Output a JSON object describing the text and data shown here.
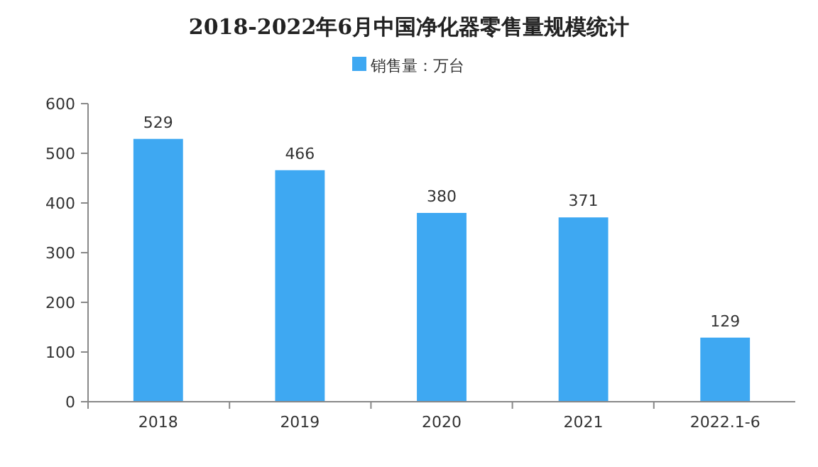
{
  "chart_data": {
    "type": "bar",
    "title": "2018-2022年6月中国净化器零售量规模统计",
    "categories": [
      "2018",
      "2019",
      "2020",
      "2021",
      "2022.1-6"
    ],
    "series": [
      {
        "name": "销售量：万台",
        "color": "#3ea8f2",
        "values": [
          529,
          466,
          380,
          371,
          129
        ]
      }
    ],
    "ylim": [
      0,
      600
    ],
    "yticks": [
      0,
      100,
      200,
      300,
      400,
      500,
      600
    ],
    "grid": false,
    "legend": "top",
    "data_labels": true
  }
}
